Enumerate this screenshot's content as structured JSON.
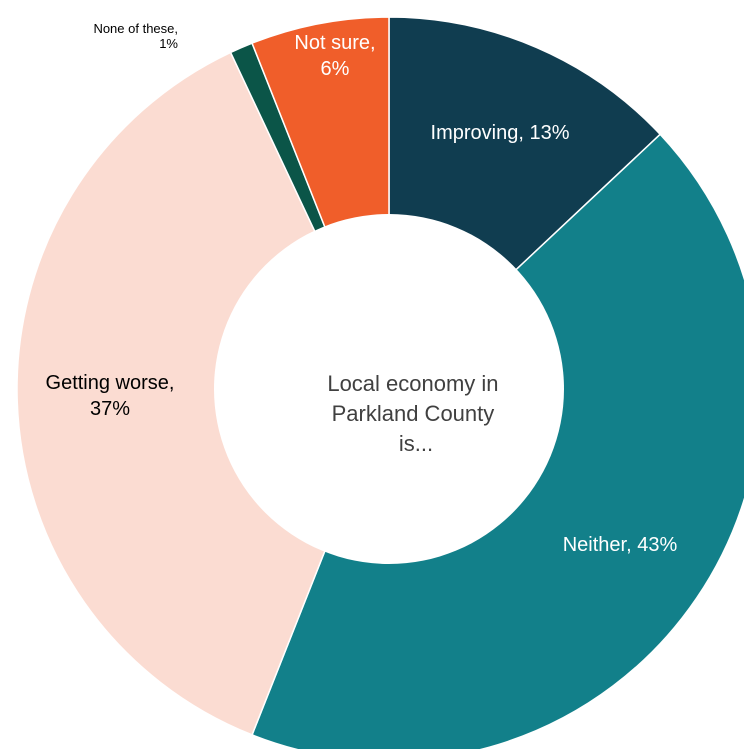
{
  "chart_data": {
    "type": "pie",
    "variant": "donut",
    "center_label": [
      "Local economy in",
      "Parkland County",
      "is..."
    ],
    "slices": [
      {
        "label_lines": [
          "Improving, 13%"
        ],
        "value": 13,
        "color": "#103D50"
      },
      {
        "label_lines": [
          "Neither, 43%"
        ],
        "value": 43,
        "color": "#12808A"
      },
      {
        "label_lines": [
          "Getting worse,",
          "37%"
        ],
        "value": 37,
        "color": "#FBDCD2"
      },
      {
        "label_lines": [
          "None of these,",
          "1%"
        ],
        "value": 1,
        "color": "#0B5548"
      },
      {
        "label_lines": [
          "Not sure,",
          "6%"
        ],
        "value": 6,
        "color": "#F05E2A"
      }
    ]
  }
}
